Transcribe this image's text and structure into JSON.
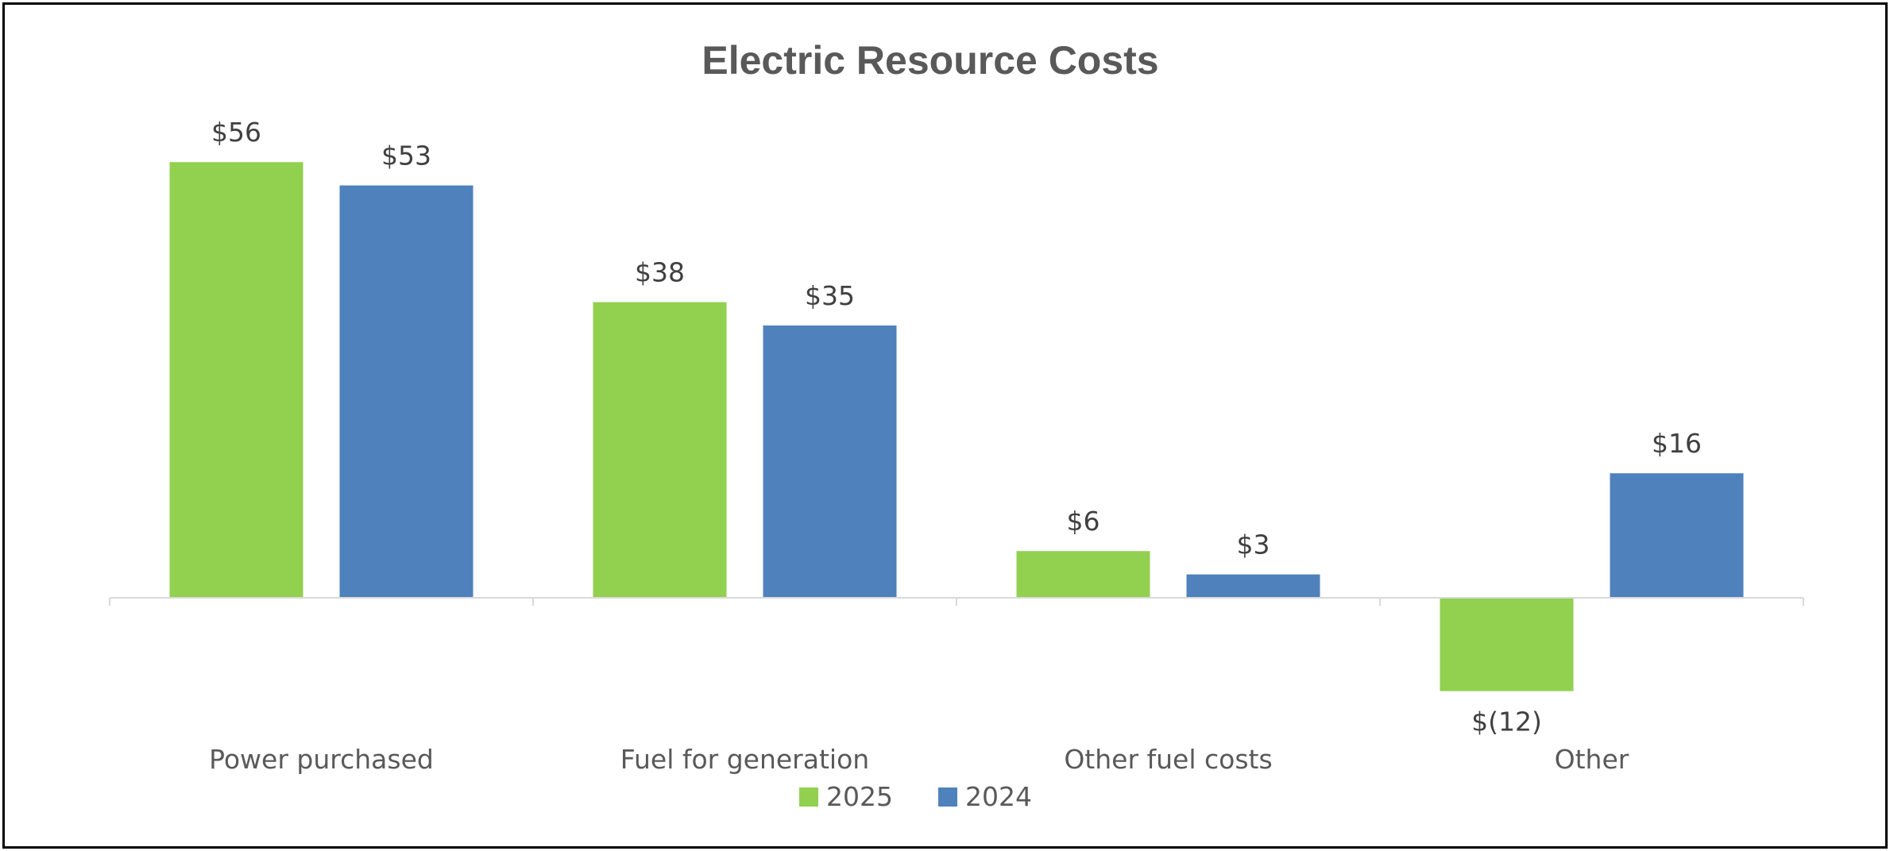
{
  "chart_data": {
    "type": "bar",
    "title": "Electric Resource Costs",
    "categories": [
      "Power purchased",
      "Fuel for generation",
      "Other fuel costs",
      "Other"
    ],
    "series": [
      {
        "name": "2025",
        "color": "#92d050",
        "values": [
          56,
          38,
          6,
          -12
        ],
        "labels": [
          "$56",
          "$38",
          "$6",
          "$(12)"
        ]
      },
      {
        "name": "2024",
        "color": "#4f81bd",
        "values": [
          53,
          35,
          3,
          16
        ],
        "labels": [
          "$53",
          "$35",
          "$3",
          "$16"
        ]
      }
    ],
    "xlabel": "",
    "ylabel": "",
    "ylim": [
      -20,
      60
    ],
    "grid": false,
    "legend": "bottom"
  }
}
